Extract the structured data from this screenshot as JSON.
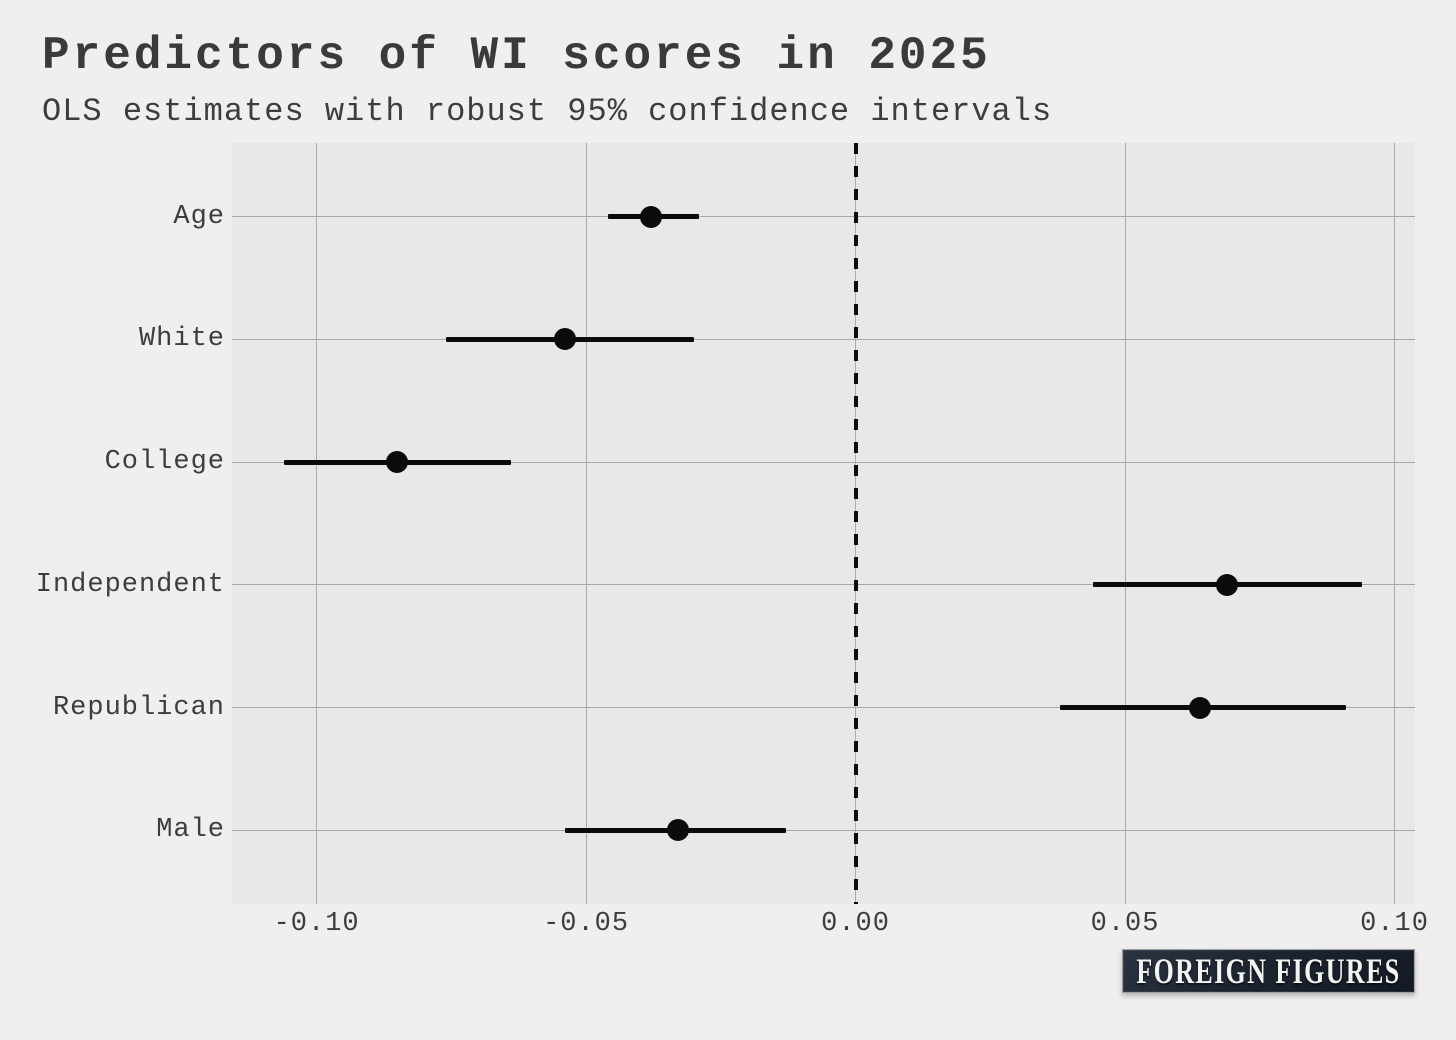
{
  "header": {
    "title": "Predictors of WI scores in 2025",
    "subtitle": "OLS estimates with robust 95% confidence intervals"
  },
  "branding": {
    "logo_text": "FOREIGN FIGURES"
  },
  "colors": {
    "background": "#f0efed",
    "panel_background": "#e9e8e7",
    "gridline": "#ababab",
    "point_and_line": "#0b0b0b",
    "text": "#3d3d3d",
    "logo_background": "#1c2430",
    "logo_text": "#f3f3f1"
  },
  "chart_data": {
    "type": "scatter",
    "subtype": "coefficient-dot-whisker",
    "title": "Predictors of WI scores in 2025",
    "subtitle": "OLS estimates with robust 95% confidence intervals",
    "orientation": "horizontal",
    "categories": [
      "Age",
      "White",
      "College",
      "Independent",
      "Republican",
      "Male"
    ],
    "points": [
      {
        "label": "Age",
        "estimate": -0.038,
        "ci_low": -0.046,
        "ci_high": -0.029
      },
      {
        "label": "White",
        "estimate": -0.054,
        "ci_low": -0.076,
        "ci_high": -0.03
      },
      {
        "label": "College",
        "estimate": -0.085,
        "ci_low": -0.106,
        "ci_high": -0.064
      },
      {
        "label": "Independent",
        "estimate": 0.069,
        "ci_low": 0.044,
        "ci_high": 0.094
      },
      {
        "label": "Republican",
        "estimate": 0.064,
        "ci_low": 0.038,
        "ci_high": 0.091
      },
      {
        "label": "Male",
        "estimate": -0.033,
        "ci_low": -0.054,
        "ci_high": -0.013
      }
    ],
    "x_ticks": [
      -0.1,
      -0.05,
      0.0,
      0.05,
      0.1
    ],
    "x_tick_labels": [
      "-0.10",
      "-0.05",
      "0.00",
      "0.05",
      "0.10"
    ],
    "xlim": [
      -0.1157,
      0.1038
    ],
    "zero_reference_line": 0,
    "zero_line_style": "dashed",
    "grid": "major-only",
    "legend": "none",
    "xlabel": "",
    "ylabel": ""
  }
}
